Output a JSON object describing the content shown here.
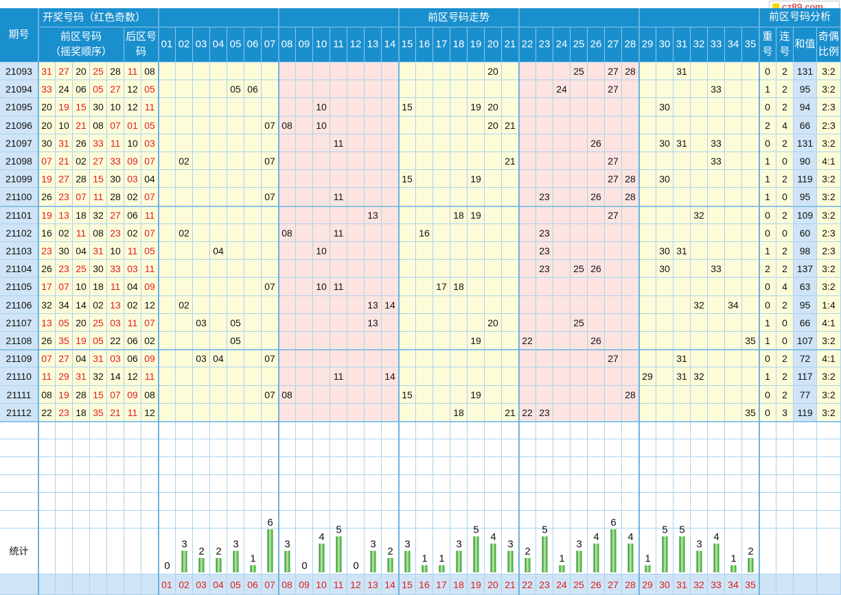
{
  "brand": {
    "logo_text": "cz89.com",
    "logo_color": "#f5d800"
  },
  "header": {
    "period": "期号",
    "draw_numbers": "开奖号码（红色奇数）",
    "front_sub": "前区号码",
    "front_sub2": "（摇奖顺序）",
    "back_sub": "后区号码",
    "trend": "前区号码走势",
    "analysis": "前区号码分析",
    "repeat": "重号",
    "consec": "连号",
    "sum": "和值",
    "ratio": "奇偶比例"
  },
  "stats_label": "统计",
  "chart_data": {
    "type": "table",
    "columns": [
      "01",
      "02",
      "03",
      "04",
      "05",
      "06",
      "07",
      "08",
      "09",
      "10",
      "11",
      "12",
      "13",
      "14",
      "15",
      "16",
      "17",
      "18",
      "19",
      "20",
      "21",
      "22",
      "23",
      "24",
      "25",
      "26",
      "27",
      "28",
      "29",
      "30",
      "31",
      "32",
      "33",
      "34",
      "35"
    ],
    "rows": [
      {
        "period": "21093",
        "front": [
          "31",
          "27",
          "20",
          "25",
          "28"
        ],
        "back": [
          "11",
          "08"
        ],
        "repeat": 0,
        "consec": 2,
        "sum": 131,
        "ratio": "3:2"
      },
      {
        "period": "21094",
        "front": [
          "33",
          "24",
          "06",
          "05",
          "27"
        ],
        "back": [
          "12",
          "05"
        ],
        "repeat": 1,
        "consec": 2,
        "sum": 95,
        "ratio": "3:2"
      },
      {
        "period": "21095",
        "front": [
          "20",
          "19",
          "15",
          "30",
          "10"
        ],
        "back": [
          "12",
          "11"
        ],
        "repeat": 0,
        "consec": 2,
        "sum": 94,
        "ratio": "2:3"
      },
      {
        "period": "21096",
        "front": [
          "20",
          "10",
          "21",
          "08",
          "07"
        ],
        "back": [
          "01",
          "05"
        ],
        "repeat": 2,
        "consec": 4,
        "sum": 66,
        "ratio": "2:3"
      },
      {
        "period": "21097",
        "front": [
          "30",
          "31",
          "26",
          "33",
          "11"
        ],
        "back": [
          "10",
          "03"
        ],
        "repeat": 0,
        "consec": 2,
        "sum": 131,
        "ratio": "3:2"
      },
      {
        "period": "21098",
        "front": [
          "07",
          "21",
          "02",
          "27",
          "33"
        ],
        "back": [
          "09",
          "07"
        ],
        "repeat": 1,
        "consec": 0,
        "sum": 90,
        "ratio": "4:1"
      },
      {
        "period": "21099",
        "front": [
          "19",
          "27",
          "28",
          "15",
          "30"
        ],
        "back": [
          "03",
          "04"
        ],
        "repeat": 1,
        "consec": 2,
        "sum": 119,
        "ratio": "3:2"
      },
      {
        "period": "21100",
        "front": [
          "26",
          "23",
          "07",
          "11",
          "28"
        ],
        "back": [
          "02",
          "07"
        ],
        "repeat": 1,
        "consec": 0,
        "sum": 95,
        "ratio": "3:2"
      },
      {
        "period": "21101",
        "front": [
          "19",
          "13",
          "18",
          "32",
          "27"
        ],
        "back": [
          "06",
          "11"
        ],
        "repeat": 0,
        "consec": 2,
        "sum": 109,
        "ratio": "3:2"
      },
      {
        "period": "21102",
        "front": [
          "16",
          "02",
          "11",
          "08",
          "23"
        ],
        "back": [
          "02",
          "07"
        ],
        "repeat": 0,
        "consec": 0,
        "sum": 60,
        "ratio": "2:3"
      },
      {
        "period": "21103",
        "front": [
          "23",
          "30",
          "04",
          "31",
          "10"
        ],
        "back": [
          "11",
          "05"
        ],
        "repeat": 1,
        "consec": 2,
        "sum": 98,
        "ratio": "2:3"
      },
      {
        "period": "21104",
        "front": [
          "26",
          "23",
          "25",
          "30",
          "33"
        ],
        "back": [
          "03",
          "11"
        ],
        "repeat": 2,
        "consec": 2,
        "sum": 137,
        "ratio": "3:2"
      },
      {
        "period": "21105",
        "front": [
          "17",
          "07",
          "10",
          "18",
          "11"
        ],
        "back": [
          "04",
          "09"
        ],
        "repeat": 0,
        "consec": 4,
        "sum": 63,
        "ratio": "3:2"
      },
      {
        "period": "21106",
        "front": [
          "32",
          "34",
          "14",
          "02",
          "13"
        ],
        "back": [
          "02",
          "12"
        ],
        "repeat": 0,
        "consec": 2,
        "sum": 95,
        "ratio": "1:4"
      },
      {
        "period": "21107",
        "front": [
          "13",
          "05",
          "20",
          "25",
          "03"
        ],
        "back": [
          "11",
          "07"
        ],
        "repeat": 1,
        "consec": 0,
        "sum": 66,
        "ratio": "4:1"
      },
      {
        "period": "21108",
        "front": [
          "26",
          "35",
          "19",
          "05",
          "22"
        ],
        "back": [
          "06",
          "02"
        ],
        "repeat": 1,
        "consec": 0,
        "sum": 107,
        "ratio": "3:2"
      },
      {
        "period": "21109",
        "front": [
          "07",
          "27",
          "04",
          "31",
          "03"
        ],
        "back": [
          "06",
          "09"
        ],
        "repeat": 0,
        "consec": 2,
        "sum": 72,
        "ratio": "4:1"
      },
      {
        "period": "21110",
        "front": [
          "11",
          "29",
          "31",
          "32",
          "14"
        ],
        "back": [
          "12",
          "11"
        ],
        "repeat": 1,
        "consec": 2,
        "sum": 117,
        "ratio": "3:2"
      },
      {
        "period": "21111",
        "front": [
          "08",
          "19",
          "28",
          "15",
          "07"
        ],
        "back": [
          "09",
          "08"
        ],
        "repeat": 0,
        "consec": 2,
        "sum": 77,
        "ratio": "3:2"
      },
      {
        "period": "21112",
        "front": [
          "22",
          "23",
          "18",
          "35",
          "21"
        ],
        "back": [
          "11",
          "12"
        ],
        "repeat": 0,
        "consec": 3,
        "sum": 119,
        "ratio": "3:2"
      }
    ],
    "stats": {
      "categories": [
        "01",
        "02",
        "03",
        "04",
        "05",
        "06",
        "07",
        "08",
        "09",
        "10",
        "11",
        "12",
        "13",
        "14",
        "15",
        "16",
        "17",
        "18",
        "19",
        "20",
        "21",
        "22",
        "23",
        "24",
        "25",
        "26",
        "27",
        "28",
        "29",
        "30",
        "31",
        "32",
        "33",
        "34",
        "35"
      ],
      "values": [
        0,
        3,
        2,
        2,
        3,
        1,
        6,
        3,
        0,
        4,
        5,
        0,
        3,
        2,
        3,
        1,
        1,
        3,
        5,
        4,
        3,
        2,
        5,
        1,
        3,
        4,
        6,
        4,
        1,
        5,
        5,
        3,
        4,
        1,
        2
      ],
      "ylim": [
        0,
        6
      ]
    }
  },
  "colors": {
    "header": "#1a8fce",
    "zone_yellow": "#fdfcd9",
    "zone_pink": "#fde4e1",
    "period_bg": "#cfe4f6",
    "odd": "#e01c1c",
    "bar": "#3aa63a"
  }
}
